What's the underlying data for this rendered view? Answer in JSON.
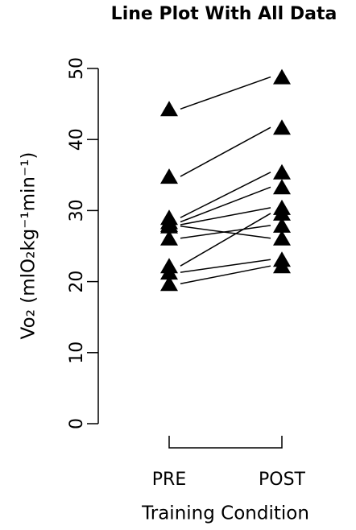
{
  "chart_data": {
    "type": "paired-line",
    "title": "Line Plot With All Data",
    "xlabel": "Training Condition",
    "ylabel": "Vo₂ (mlO₂kg⁻¹min⁻¹)",
    "categories": [
      "PRE",
      "POST"
    ],
    "ylim": [
      0,
      50
    ],
    "yticks": [
      0,
      10,
      20,
      30,
      40,
      50
    ],
    "color": "#000000",
    "series": [
      {
        "values": [
          44.3,
          48.8
        ]
      },
      {
        "values": [
          34.8,
          41.7
        ]
      },
      {
        "values": [
          29.0,
          35.4
        ]
      },
      {
        "values": [
          28.4,
          33.3
        ]
      },
      {
        "values": [
          28.0,
          30.4
        ]
      },
      {
        "values": [
          27.8,
          26.1
        ]
      },
      {
        "values": [
          26.1,
          27.9
        ]
      },
      {
        "values": [
          22.2,
          29.6
        ]
      },
      {
        "values": [
          21.3,
          23.1
        ]
      },
      {
        "values": [
          19.7,
          22.2
        ]
      }
    ]
  }
}
